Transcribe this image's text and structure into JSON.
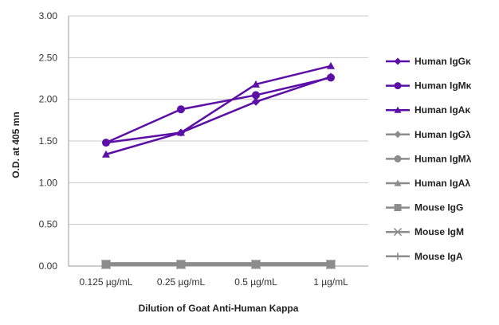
{
  "chart_data": {
    "type": "line",
    "title": "",
    "xlabel": "Dilution of Goat Anti-Human Kappa",
    "ylabel": "O.D. at 405 mn",
    "categories": [
      "0.125 µg/mL",
      "0.25 µg/mL",
      "0.5 µg/mL",
      "1 µg/mL"
    ],
    "ylim": [
      0,
      3
    ],
    "yticks": [
      "0.00",
      "0.50",
      "1.00",
      "1.50",
      "2.00",
      "2.50",
      "3.00"
    ],
    "grid": "horizontal",
    "legend": "right",
    "series": [
      {
        "name": "Human IgGκ",
        "color": "#5b0fa6",
        "marker": "diamond",
        "values": [
          1.48,
          1.6,
          1.97,
          2.27
        ]
      },
      {
        "name": "Human IgMκ",
        "color": "#5b0fa6",
        "marker": "circle",
        "values": [
          1.48,
          1.88,
          2.05,
          2.26
        ]
      },
      {
        "name": "Human IgAκ",
        "color": "#5b0fa6",
        "marker": "triangle",
        "values": [
          1.34,
          1.6,
          2.18,
          2.4
        ]
      },
      {
        "name": "Human IgGλ",
        "color": "#8c8c8c",
        "marker": "diamond",
        "values": [
          0.02,
          0.02,
          0.02,
          0.02
        ]
      },
      {
        "name": "Human IgMλ",
        "color": "#8c8c8c",
        "marker": "circle",
        "values": [
          0.02,
          0.02,
          0.02,
          0.02
        ]
      },
      {
        "name": "Human IgAλ",
        "color": "#8c8c8c",
        "marker": "triangle",
        "values": [
          0.02,
          0.02,
          0.02,
          0.02
        ]
      },
      {
        "name": "Mouse IgG",
        "color": "#8c8c8c",
        "marker": "square",
        "values": [
          0.02,
          0.02,
          0.02,
          0.02
        ]
      },
      {
        "name": "Mouse IgM",
        "color": "#8c8c8c",
        "marker": "x",
        "values": [
          0.02,
          0.02,
          0.02,
          0.02
        ]
      },
      {
        "name": "Mouse IgA",
        "color": "#8c8c8c",
        "marker": "plus",
        "values": [
          0.02,
          0.02,
          0.02,
          0.02
        ]
      }
    ]
  }
}
